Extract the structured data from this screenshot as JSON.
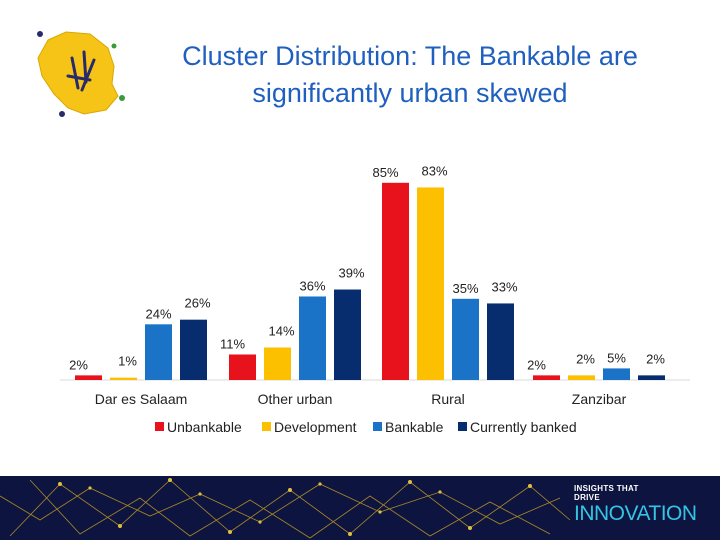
{
  "title_lines": [
    "Cluster Distribution: The Bankable are",
    "significantly urban skewed"
  ],
  "brand": {
    "line1": "INSIGHTS THAT",
    "line2": "DRIVE",
    "line3": "INNOVATION"
  },
  "colors": {
    "title": "#1f5fbf",
    "Unbankable": "#e8121c",
    "Development": "#fcc000",
    "Bankable": "#1a73c6",
    "Currently banked": "#072d6e",
    "footer_bg": "#0d1440",
    "brand_accent": "#35c4e4"
  },
  "chart_data": {
    "type": "bar",
    "title": "Cluster Distribution: The Bankable are significantly urban skewed",
    "categories": [
      "Dar es Salaam",
      "Other urban",
      "Rural",
      "Zanzibar"
    ],
    "series": [
      {
        "name": "Unbankable",
        "values": [
          2,
          11,
          85,
          2
        ],
        "labels": [
          "2%",
          "11%",
          "85%",
          "2%"
        ]
      },
      {
        "name": "Development",
        "values": [
          1,
          14,
          83,
          2
        ],
        "labels": [
          "1%",
          "14%",
          "83%",
          "2%"
        ]
      },
      {
        "name": "Bankable",
        "values": [
          24,
          36,
          35,
          5
        ],
        "labels": [
          "24%",
          "36%",
          "35%",
          "5%"
        ]
      },
      {
        "name": "Currently banked",
        "values": [
          26,
          39,
          33,
          2
        ],
        "labels": [
          "26%",
          "39%",
          "33%",
          "2%"
        ]
      }
    ],
    "ylim": [
      0,
      100
    ],
    "grid": false,
    "legend": "bottom",
    "xlabel": "",
    "ylabel": ""
  }
}
